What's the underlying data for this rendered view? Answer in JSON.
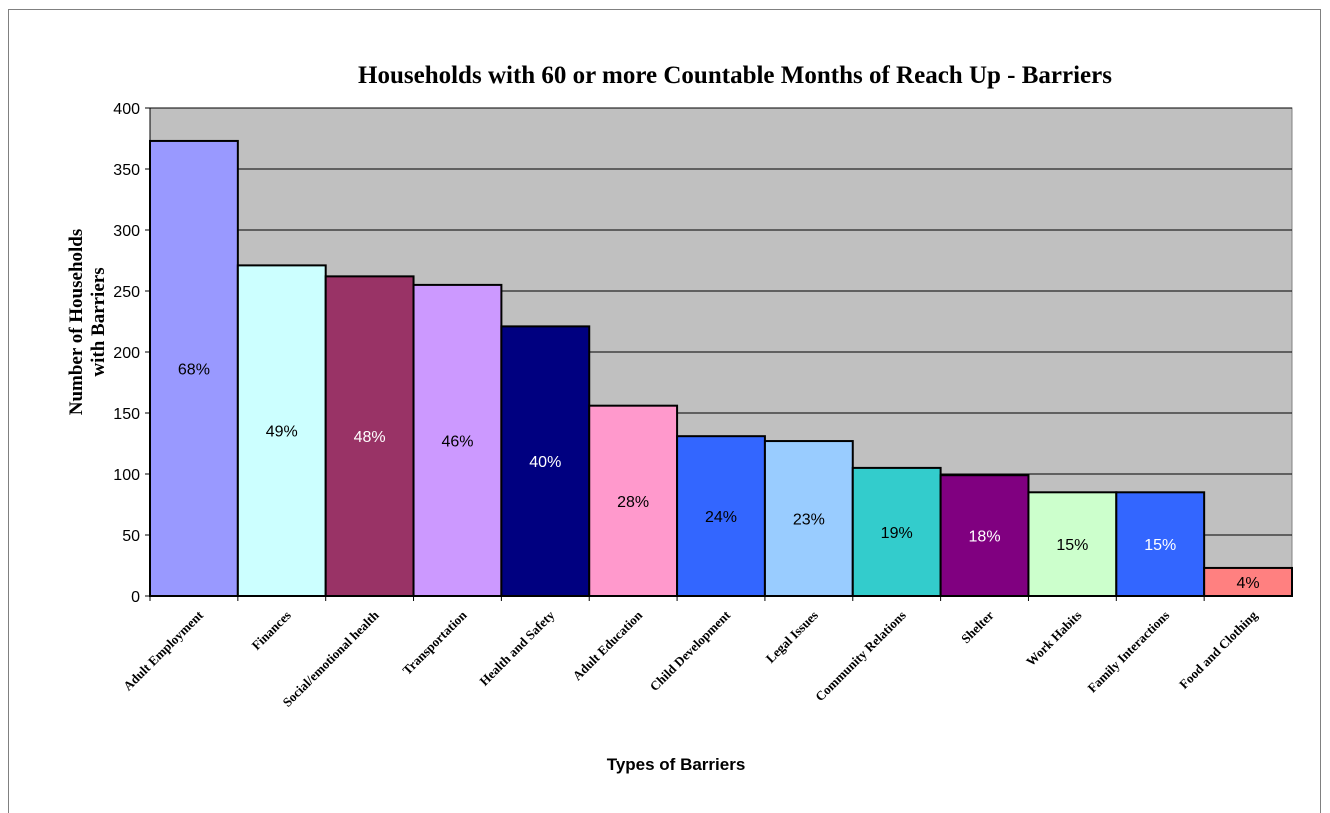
{
  "chart_data": {
    "type": "bar",
    "title": "Households with 60 or more Countable Months of Reach Up - Barriers",
    "xlabel": "Types of Barriers",
    "ylabel": "Number of Households with Barriers",
    "ylim": [
      0,
      400
    ],
    "yticks": [
      0,
      50,
      100,
      150,
      200,
      250,
      300,
      350,
      400
    ],
    "grid": true,
    "legend": "none",
    "plot_background": "#c0c0c0",
    "categories": [
      "Adult Employment",
      "Finances",
      "Social/emotional health",
      "Transportation",
      "Health and Safety",
      "Adult Education",
      "Child Development",
      "Legal Issues",
      "Community Relations",
      "Shelter",
      "Work Habits",
      "Family Interactions",
      "Food and Clothing"
    ],
    "values": [
      373,
      271,
      262,
      255,
      221,
      156,
      131,
      127,
      105,
      99,
      85,
      85,
      23
    ],
    "data_labels": [
      "68%",
      "49%",
      "48%",
      "46%",
      "40%",
      "28%",
      "24%",
      "23%",
      "19%",
      "18%",
      "15%",
      "15%",
      "4%"
    ],
    "colors": [
      "#9999ff",
      "#ccffff",
      "#993366",
      "#cc99ff",
      "#000080",
      "#ff99cc",
      "#3366ff",
      "#99ccff",
      "#33cccc",
      "#800080",
      "#ccffcc",
      "#3366ff",
      "#ff8080"
    ],
    "label_colors": [
      "#000000",
      "#000000",
      "#ffffff",
      "#000000",
      "#ffffff",
      "#000000",
      "#000000",
      "#000000",
      "#000000",
      "#ffffff",
      "#000000",
      "#ffffff",
      "#000000"
    ]
  }
}
